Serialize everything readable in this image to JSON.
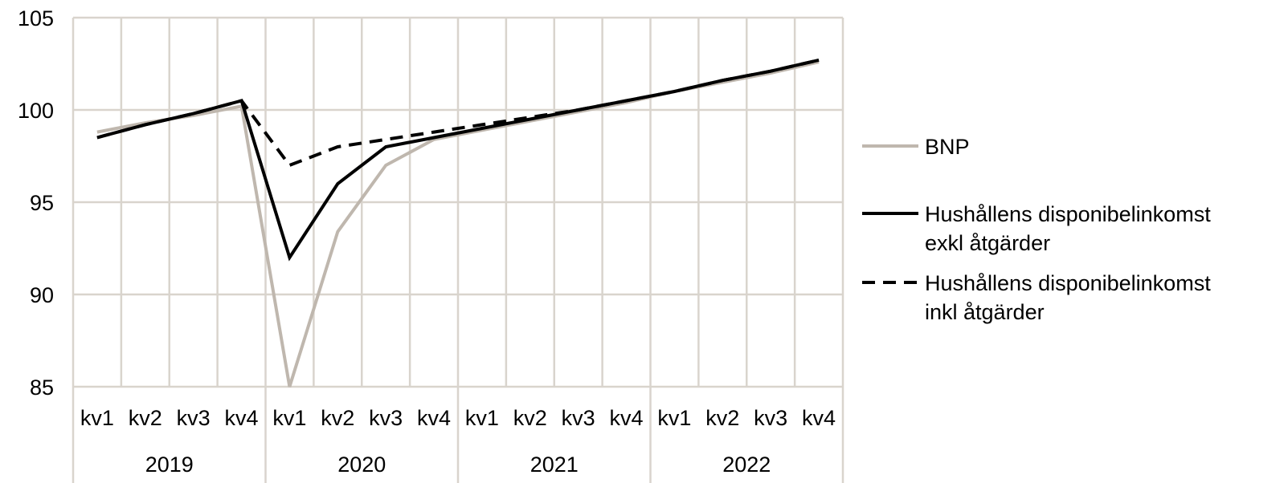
{
  "chart_data": {
    "type": "line",
    "categories": [
      "kv1",
      "kv2",
      "kv3",
      "kv4",
      "kv1",
      "kv2",
      "kv3",
      "kv4",
      "kv1",
      "kv2",
      "kv3",
      "kv4",
      "kv1",
      "kv2",
      "kv3",
      "kv4"
    ],
    "groups": [
      {
        "label": "2019",
        "start": 0,
        "count": 4
      },
      {
        "label": "2020",
        "start": 4,
        "count": 4
      },
      {
        "label": "2021",
        "start": 8,
        "count": 4
      },
      {
        "label": "2022",
        "start": 12,
        "count": 4
      }
    ],
    "series": [
      {
        "name": "BNP",
        "color": "#bfb7ae",
        "dash": "solid",
        "values": [
          98.8,
          99.3,
          99.7,
          100.2,
          85.0,
          93.4,
          97.0,
          98.4,
          98.9,
          99.4,
          99.9,
          100.4,
          101.0,
          101.5,
          102.0,
          102.6
        ]
      },
      {
        "name": "Hushållens disponibelinkomst exkl åtgärder",
        "color": "#000000",
        "dash": "solid",
        "values": [
          98.5,
          99.2,
          99.8,
          100.5,
          92.0,
          96.0,
          98.0,
          98.5,
          99.0,
          99.5,
          100.0,
          100.5,
          101.0,
          101.6,
          102.1,
          102.7
        ]
      },
      {
        "name": "Hushållens disponibelinkomst inkl åtgärder",
        "color": "#000000",
        "dash": "dashed",
        "values": [
          98.5,
          99.2,
          99.8,
          100.5,
          97.0,
          98.0,
          98.4,
          98.8,
          99.2,
          99.6,
          100.0,
          100.5,
          101.0,
          101.6,
          102.1,
          102.7
        ]
      }
    ],
    "yticks": [
      85,
      90,
      95,
      100,
      105
    ],
    "ylim": [
      85,
      105
    ],
    "grid": true,
    "legend_position": "right",
    "title": "",
    "xlabel": "",
    "ylabel": ""
  },
  "legend": {
    "bnp": "BNP",
    "exkl_line1": "Hushållens disponibelinkomst",
    "exkl_line2": "exkl åtgärder",
    "inkl_line1": "Hushållens disponibelinkomst",
    "inkl_line2": "inkl åtgärder"
  }
}
